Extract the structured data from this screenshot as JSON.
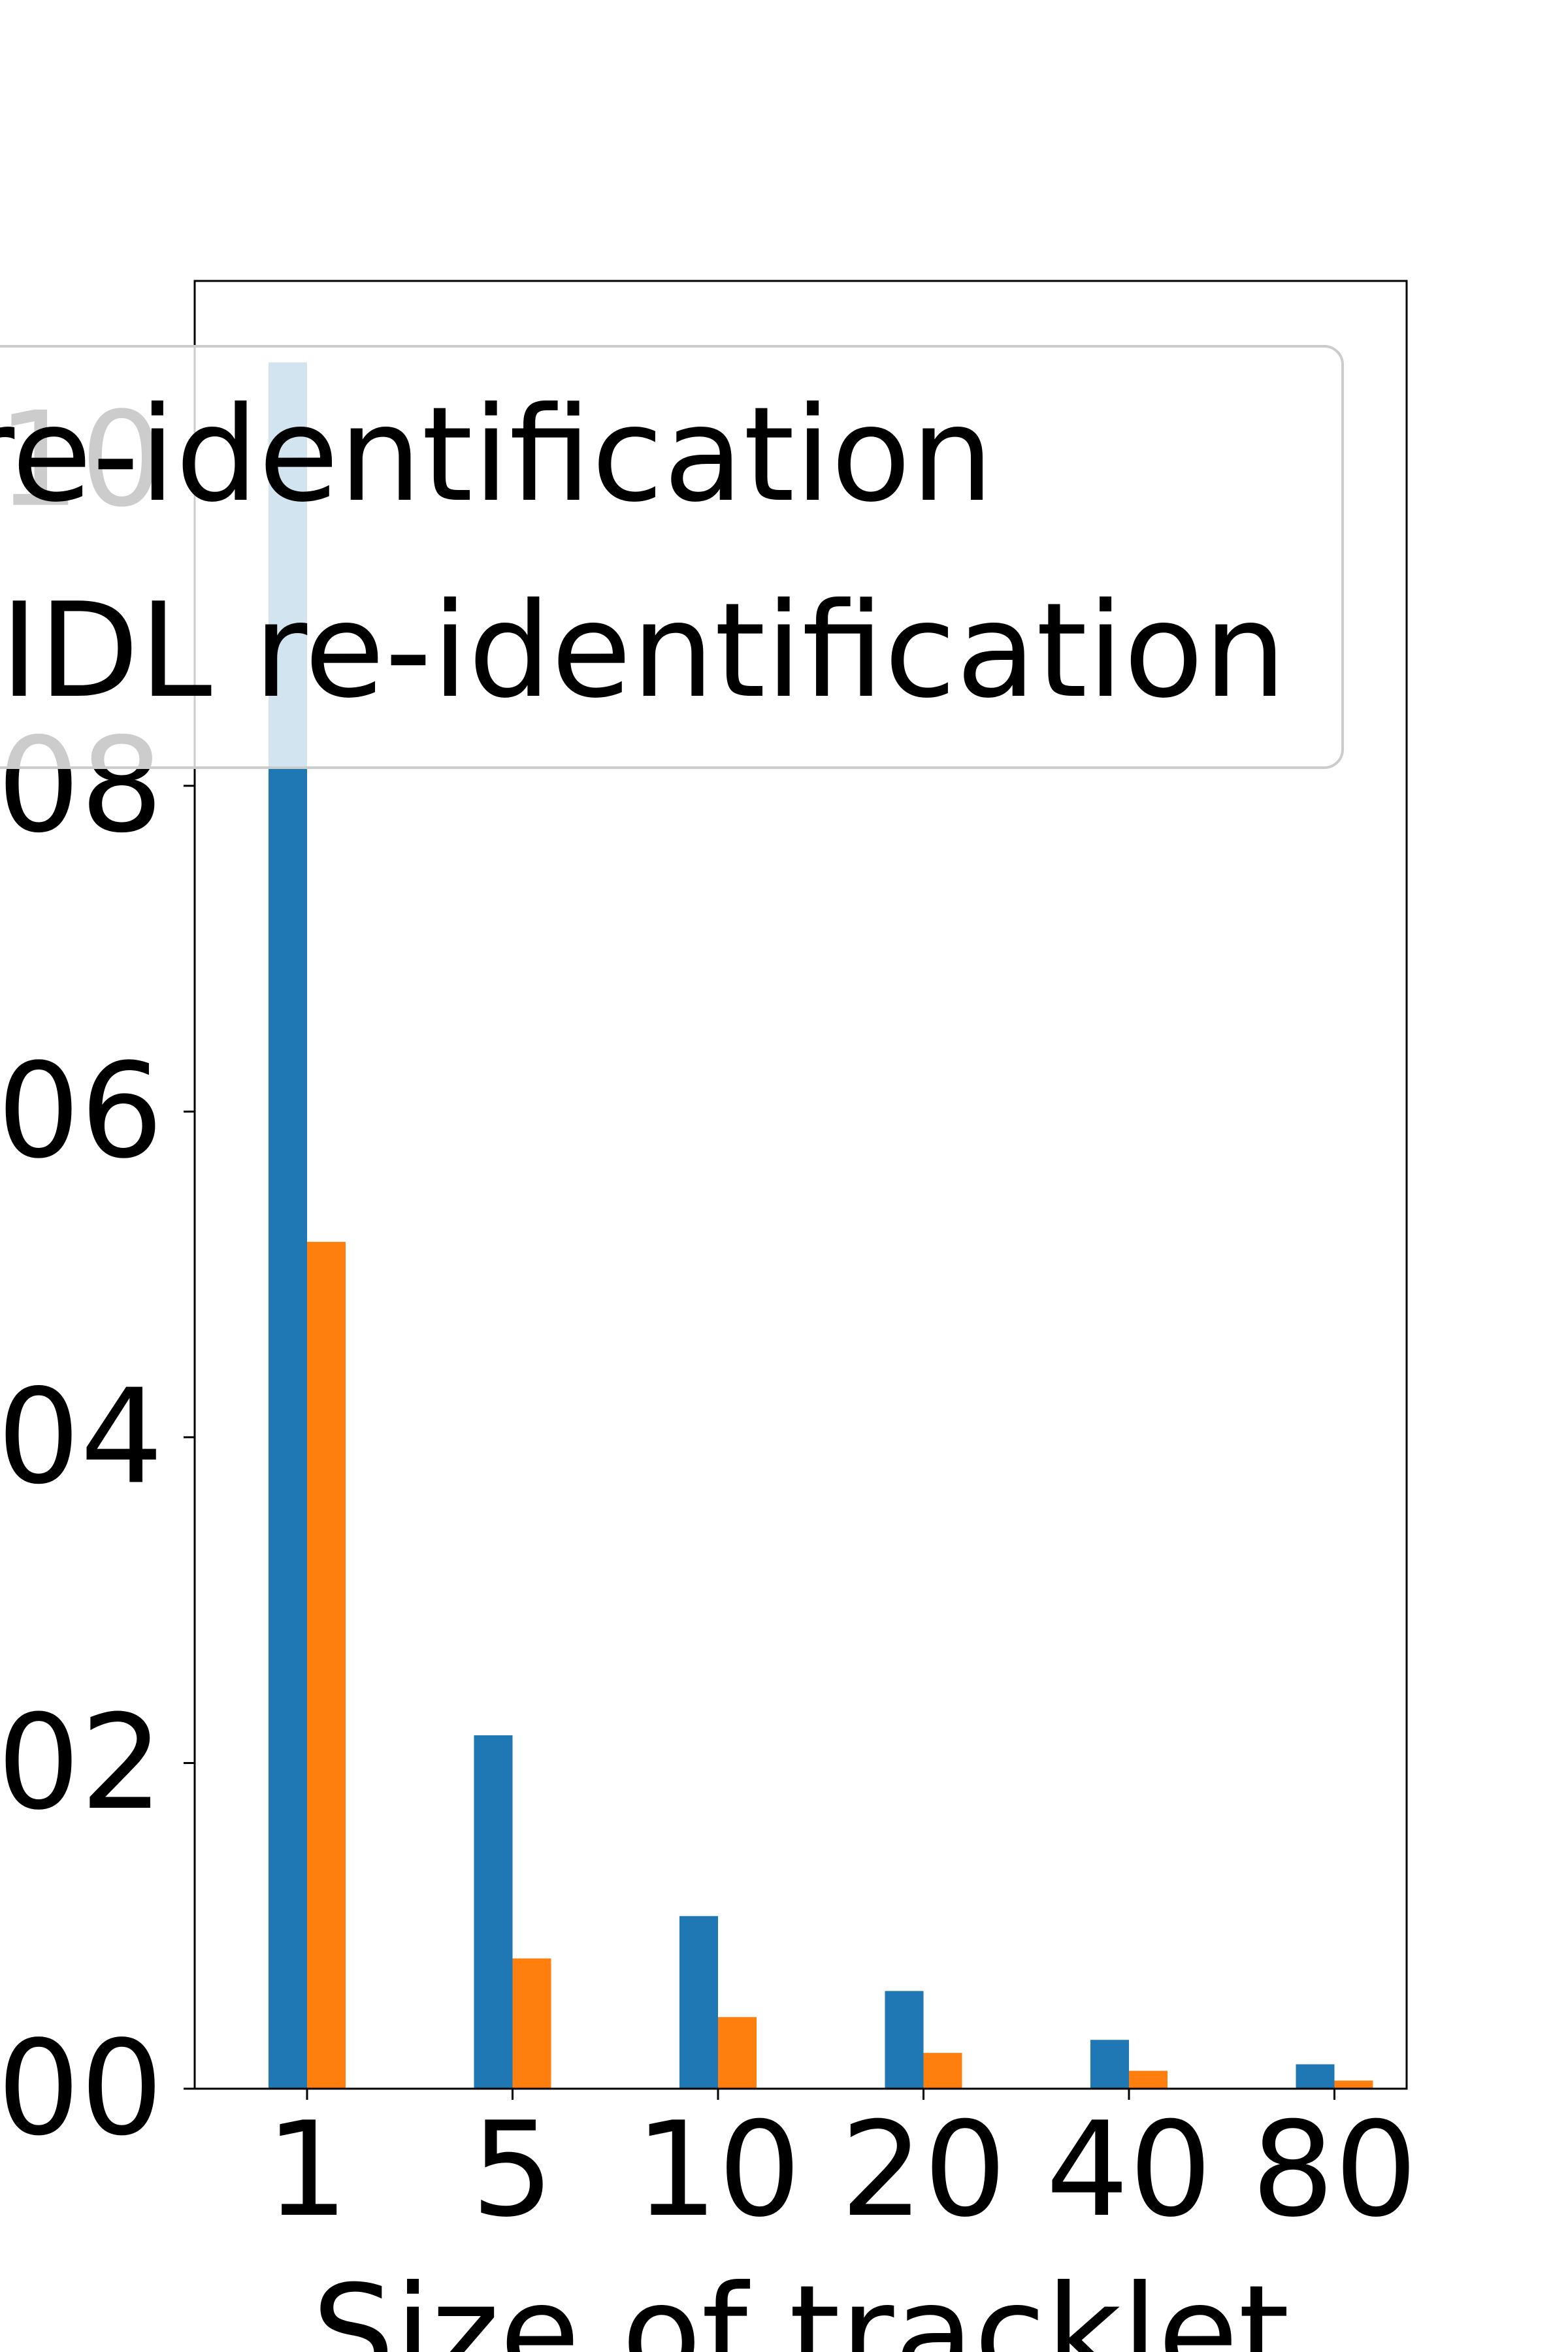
{
  "chart_data": {
    "type": "bar",
    "categories": [
      "1",
      "5",
      "10",
      "20",
      "40",
      "80"
    ],
    "series": [
      {
        "name": "re-identification",
        "values": [
          0.106,
          0.0217,
          0.0106,
          0.006,
          0.003,
          0.0015
        ],
        "color": "#1f77b4"
      },
      {
        "name": "IDL re-identification",
        "values": [
          0.052,
          0.008,
          0.0044,
          0.0022,
          0.0011,
          0.0005
        ],
        "color": "#ff7f0e"
      }
    ],
    "title": "",
    "xlabel": "Size of tracklet",
    "ylabel": "",
    "ylim": [
      0,
      0.111
    ],
    "yticks": [
      0.0,
      0.02,
      0.04,
      0.06,
      0.08,
      0.1
    ],
    "ytick_labels": [
      "00",
      "02",
      "04",
      "06",
      "08",
      "10"
    ],
    "legend_position": "top-left",
    "grid": false
  }
}
